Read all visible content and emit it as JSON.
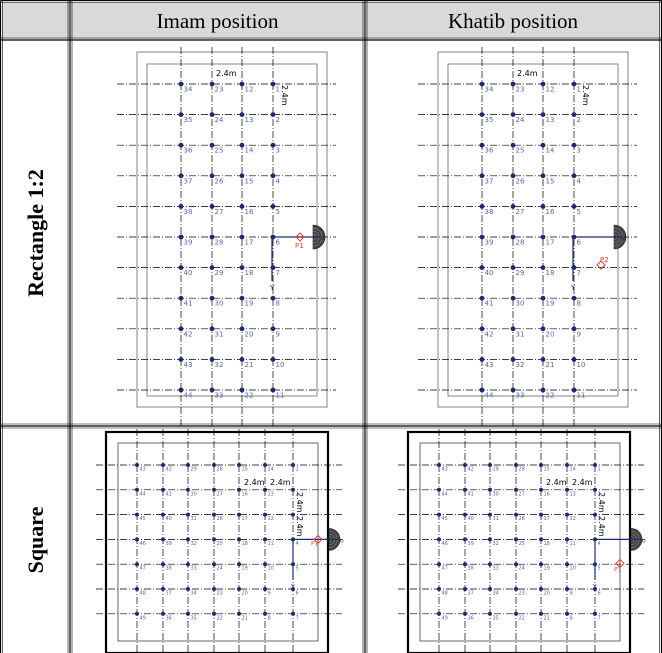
{
  "table": {
    "headers": {
      "col1": "Imam position",
      "col2": "Khatib position"
    },
    "rows": [
      {
        "label": "Rectangle 1:2"
      },
      {
        "label": "Square"
      }
    ]
  },
  "diagrams": {
    "spacing_label": "2.4m",
    "axis_x_label": "o",
    "axis_y_label": "Y",
    "rect_imam": {
      "columns": [
        [
          "34",
          "35",
          "36",
          "37",
          "38",
          "39",
          "40",
          "41",
          "42",
          "43",
          "44"
        ],
        [
          "23",
          "24",
          "25",
          "26",
          "27",
          "28",
          "29",
          "30",
          "31",
          "32",
          "33"
        ],
        [
          "12",
          "13",
          "14",
          "15",
          "16",
          "17",
          "18",
          "19",
          "20",
          "21",
          "22"
        ],
        [
          "1",
          "2",
          "3",
          "4",
          "5",
          "6",
          "7",
          "8",
          "9",
          "10",
          "11"
        ]
      ],
      "point_label": "P1"
    },
    "rect_khatib": {
      "columns": [
        [
          "34",
          "35",
          "36",
          "37",
          "38",
          "39",
          "40",
          "41",
          "42",
          "43",
          "44"
        ],
        [
          "23",
          "24",
          "25",
          "26",
          "27",
          "28",
          "29",
          "30",
          "31",
          "32",
          "33"
        ],
        [
          "12",
          "13",
          "14",
          "15",
          "16",
          "17",
          "18",
          "19",
          "20",
          "21",
          "22"
        ],
        [
          "1",
          "2",
          "3",
          "4",
          "5",
          "6",
          "7",
          "8",
          "9",
          "10",
          "11"
        ]
      ],
      "point_label": "P2"
    },
    "square_imam": {
      "rows": [
        [
          "43",
          "42",
          "29",
          "28",
          "15",
          "14",
          "1"
        ],
        [
          "44",
          "41",
          "30",
          "27",
          "16",
          "13",
          "2"
        ],
        [
          "45",
          "40",
          "31",
          "26",
          "17",
          "12",
          "3"
        ],
        [
          "46",
          "39",
          "32",
          "25",
          "18",
          "11",
          "4"
        ],
        [
          "47",
          "38",
          "33",
          "24",
          "19",
          "10",
          "5"
        ],
        [
          "48",
          "37",
          "34",
          "23",
          "20",
          "9",
          "6"
        ],
        [
          "49",
          "36",
          "35",
          "22",
          "21",
          "8",
          "7"
        ]
      ],
      "point_label": "P1"
    },
    "square_khatib": {
      "rows": [
        [
          "43",
          "42",
          "29",
          "28",
          "15",
          "14",
          "1"
        ],
        [
          "44",
          "41",
          "30",
          "27",
          "16",
          "13",
          "2"
        ],
        [
          "45",
          "40",
          "31",
          "26",
          "17",
          "12",
          "3"
        ],
        [
          "46",
          "39",
          "32",
          "25",
          "18",
          "11",
          "4"
        ],
        [
          "47",
          "38",
          "33",
          "24",
          "19",
          "10",
          "5"
        ],
        [
          "48",
          "37",
          "34",
          "23",
          "20",
          "9",
          "6"
        ],
        [
          "49",
          "36",
          "35",
          "22",
          "21",
          "8",
          "7"
        ]
      ],
      "point_label": "P1"
    }
  }
}
